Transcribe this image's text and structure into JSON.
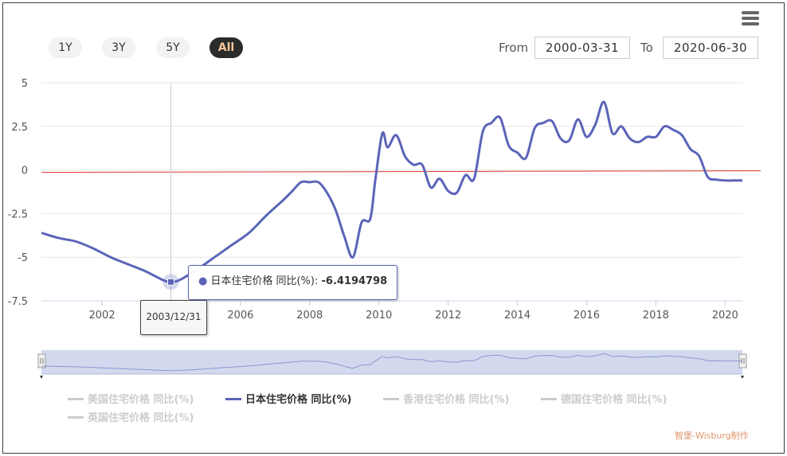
{
  "range_selector": {
    "buttons": [
      "1Y",
      "3Y",
      "5Y",
      "All"
    ],
    "selected": "All",
    "from_label": "From",
    "from_value": "2000-03-31",
    "to_label": "To",
    "to_value": "2020-06-30"
  },
  "menu_icon": "hamburger-menu-icon",
  "tooltip": {
    "series_name": "日本住宅价格 同比(%)",
    "value": "-6.4194798",
    "date": "2003/12/31"
  },
  "legend": [
    {
      "label": "美国住宅价格 同比(%)",
      "active": false
    },
    {
      "label": "日本住宅价格 同比(%)",
      "active": true
    },
    {
      "label": "香港住宅价格 同比(%)",
      "active": false
    },
    {
      "label": "德国住宅价格 同比(%)",
      "active": false
    },
    {
      "label": "英国住宅价格 同比(%)",
      "active": false
    }
  ],
  "watermark": "智堡-Wisburg制作",
  "colors": {
    "series": "#5b64b8",
    "zero_line": "#d9362b",
    "navigator_fill": "#d2d9ee",
    "active_button_bg": "#2b2b2b",
    "active_button_text": "#f7c89c"
  },
  "chart_data": {
    "type": "line",
    "x_ticks": [
      "2002",
      "2004",
      "2006",
      "2008",
      "2010",
      "2012",
      "2014",
      "2016",
      "2018",
      "2020"
    ],
    "y_ticks": [
      "5",
      "2.5",
      "0",
      "-2.5",
      "-5",
      "-7.5"
    ],
    "ylim": [
      -7.5,
      5
    ],
    "xlim": [
      2000.25,
      2020.5
    ],
    "grid": true,
    "reference_line": 0,
    "series": [
      {
        "name": "日本住宅价格 同比(%)",
        "x": [
          2000.25,
          2000.75,
          2001.25,
          2001.75,
          2002.25,
          2002.75,
          2003.25,
          2003.75,
          2003.99,
          2004.25,
          2004.75,
          2005.25,
          2005.75,
          2006.25,
          2006.75,
          2007.25,
          2007.5,
          2007.75,
          2008.0,
          2008.25,
          2008.5,
          2008.75,
          2009.0,
          2009.25,
          2009.5,
          2009.75,
          2009.9,
          2010.1,
          2010.25,
          2010.5,
          2010.75,
          2011.0,
          2011.25,
          2011.5,
          2011.75,
          2012.0,
          2012.25,
          2012.5,
          2012.75,
          2013.0,
          2013.25,
          2013.5,
          2013.75,
          2014.0,
          2014.25,
          2014.5,
          2014.75,
          2015.0,
          2015.25,
          2015.5,
          2015.75,
          2016.0,
          2016.25,
          2016.5,
          2016.75,
          2017.0,
          2017.25,
          2017.5,
          2017.75,
          2018.0,
          2018.25,
          2018.5,
          2018.75,
          2019.0,
          2019.25,
          2019.5,
          2019.75,
          2020.0,
          2020.25,
          2020.5
        ],
        "y": [
          -3.6,
          -3.9,
          -4.1,
          -4.5,
          -5.0,
          -5.4,
          -5.8,
          -6.3,
          -6.42,
          -6.3,
          -5.7,
          -5.0,
          -4.3,
          -3.6,
          -2.6,
          -1.7,
          -1.2,
          -0.7,
          -0.7,
          -0.7,
          -1.3,
          -2.3,
          -3.8,
          -5.0,
          -3.0,
          -2.8,
          -0.5,
          2.1,
          1.3,
          2.0,
          0.8,
          0.3,
          0.3,
          -1.0,
          -0.5,
          -1.2,
          -1.3,
          -0.3,
          -0.5,
          2.2,
          2.7,
          3.0,
          1.4,
          1.0,
          0.7,
          2.4,
          2.7,
          2.8,
          1.8,
          1.7,
          2.9,
          1.9,
          2.6,
          3.9,
          2.1,
          2.5,
          1.8,
          1.6,
          1.9,
          1.9,
          2.5,
          2.3,
          2.0,
          1.2,
          0.8,
          -0.4,
          -0.55,
          -0.6,
          -0.6,
          -0.6
        ]
      }
    ]
  }
}
